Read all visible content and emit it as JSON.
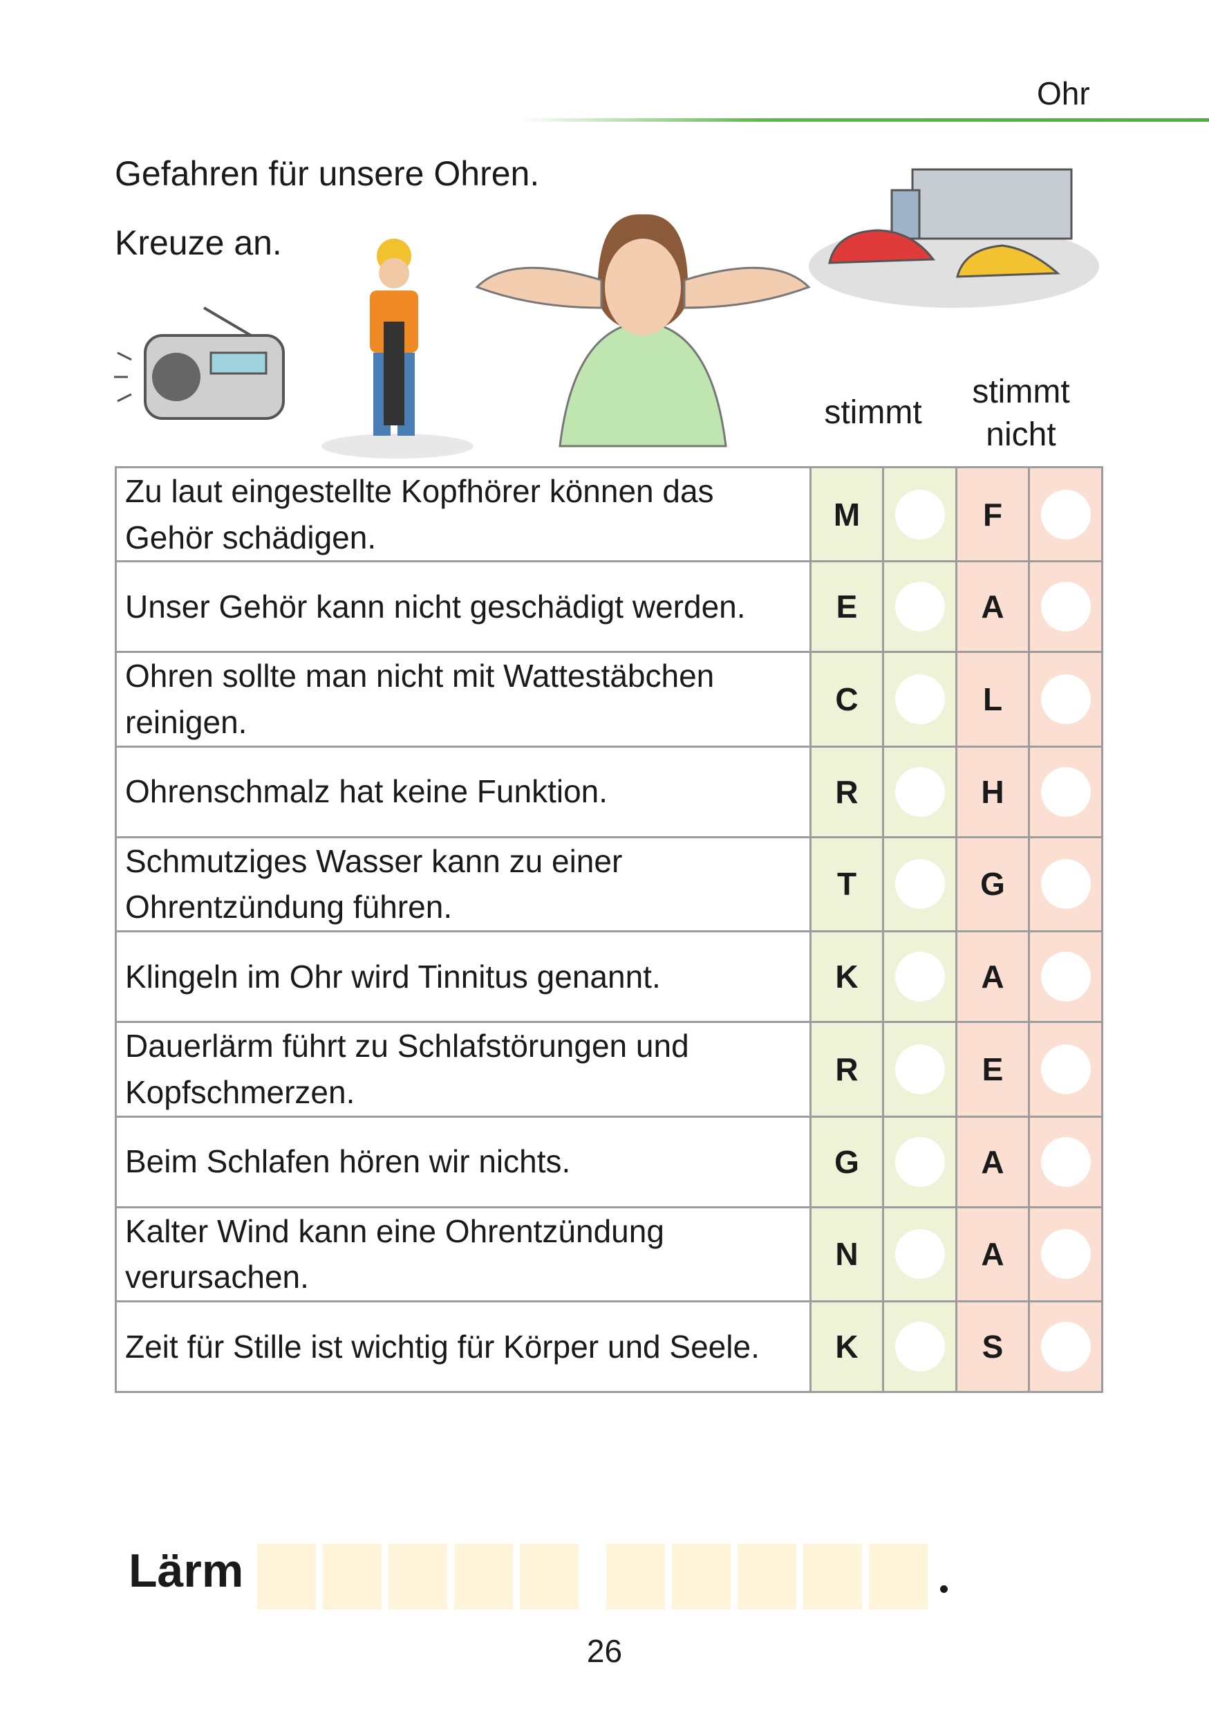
{
  "header": {
    "chapter": "Ohr",
    "accent_color": "#4caf3f"
  },
  "title": "Gefahren für unsere Ohren.",
  "instruction": "Kreuze an.",
  "illustrations": [
    "radio-icon",
    "jackhammer-worker-icon",
    "girl-covering-ears-icon",
    "traffic-jam-icon"
  ],
  "table": {
    "col_true": "stimmt",
    "col_false": "stimmt nicht",
    "rows": [
      {
        "q": "Zu laut eingestellte Kopfhörer können das Gehör schädigen.",
        "t": "M",
        "f": "F"
      },
      {
        "q": "Unser Gehör kann nicht geschädigt werden.",
        "t": "E",
        "f": "A"
      },
      {
        "q": "Ohren sollte man nicht mit Wattestäbchen reinigen.",
        "t": "C",
        "f": "L"
      },
      {
        "q": "Ohrenschmalz hat keine Funktion.",
        "t": "R",
        "f": "H"
      },
      {
        "q": "Schmutziges Wasser kann zu einer Ohrentzündung führen.",
        "t": "T",
        "f": "G"
      },
      {
        "q": "Klingeln im Ohr wird Tinnitus genannt.",
        "t": "K",
        "f": "A"
      },
      {
        "q": "Dauerlärm führt zu Schlafstörungen und Kopfschmerzen.",
        "t": "R",
        "f": "E"
      },
      {
        "q": "Beim Schlafen hören wir nichts.",
        "t": "G",
        "f": "A"
      },
      {
        "q": "Kalter Wind kann eine Ohrentzündung verursachen.",
        "t": "N",
        "f": "A"
      },
      {
        "q": "Zeit für Stille ist wichtig für Körper und Seele.",
        "t": "K",
        "f": "S"
      }
    ]
  },
  "solution": {
    "prefix": "Lärm",
    "word1_boxes": 5,
    "word2_boxes": 5,
    "suffix": "."
  },
  "page_number": "26"
}
